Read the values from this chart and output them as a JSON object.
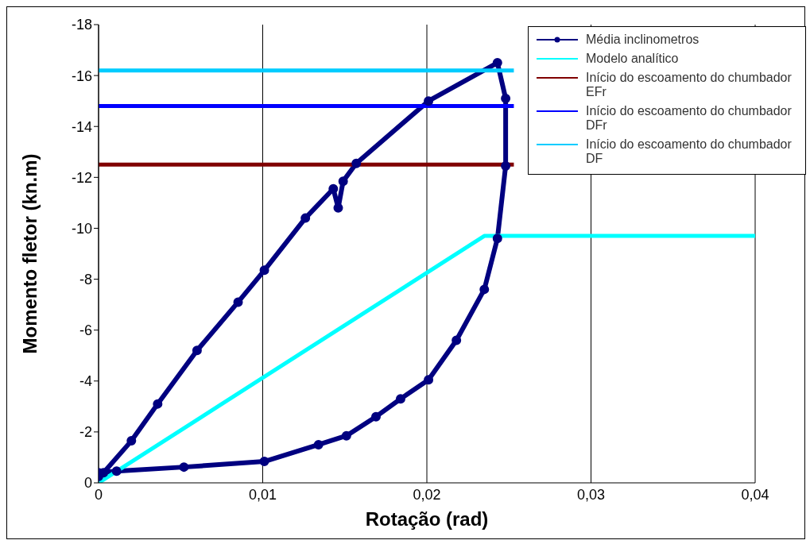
{
  "chart_data": {
    "type": "line",
    "xlabel": "Rotação (rad)",
    "ylabel": "Momento fletor (kn.m)",
    "xlim": [
      0,
      0.04
    ],
    "xticks": [
      0,
      {
        "value": 0.01,
        "label": "0,01"
      },
      {
        "value": 0.02,
        "label": "0,02"
      },
      {
        "value": 0.03,
        "label": "0,03"
      },
      {
        "value": 0.04,
        "label": "0,04"
      }
    ],
    "ylim": [
      0,
      -18
    ],
    "yticks": [
      0,
      -2,
      -4,
      -6,
      -8,
      -10,
      -12,
      -14,
      -16,
      -18
    ],
    "grid": "x",
    "legend": "top right",
    "line_style": "solid",
    "series": [
      {
        "name": "Média inclinometros",
        "color": "#000080",
        "marker": "circle",
        "x": [
          0,
          0.0003,
          0.002,
          0.0036,
          0.006,
          0.0085,
          0.0101,
          0.0126,
          0.0143,
          0.0146,
          0.0149,
          0.0157,
          0.0201,
          0.0243,
          0.0248,
          0.0248,
          0.0243,
          0.0235,
          0.0218,
          0.0201,
          0.0184,
          0.0169,
          0.0151,
          0.0134,
          0.0101,
          0.0052,
          0.0011,
          0
        ],
        "values": [
          -0.25,
          -0.4,
          -1.65,
          -3.1,
          -5.2,
          -7.1,
          -8.35,
          -10.4,
          -11.55,
          -10.8,
          -11.85,
          -12.55,
          -15.0,
          -16.5,
          -15.1,
          -12.45,
          -9.6,
          -7.6,
          -5.6,
          -4.05,
          -3.3,
          -2.6,
          -1.85,
          -1.5,
          -0.84,
          -0.62,
          -0.46,
          -0.4
        ]
      },
      {
        "name": "Modelo analítico",
        "color": "#00ffff",
        "marker": "none",
        "x": [
          0,
          0.0235,
          0.04
        ],
        "values": [
          0,
          -9.7,
          -9.7
        ]
      },
      {
        "name": "Início do escoamento do chumbador EFr",
        "color": "#800000",
        "marker": "none",
        "x": [
          0,
          0.0253
        ],
        "values": [
          -12.5,
          -12.5
        ]
      },
      {
        "name": "Início do escoamento do chumbador DFr",
        "color": "#0000ff",
        "marker": "none",
        "x": [
          0,
          0.0253
        ],
        "values": [
          -14.8,
          -14.8
        ]
      },
      {
        "name": "Início do escoamento do chumbador DF",
        "color": "#00ccff",
        "marker": "none",
        "x": [
          0,
          0.0253
        ],
        "values": [
          -16.2,
          -16.2
        ]
      }
    ]
  }
}
